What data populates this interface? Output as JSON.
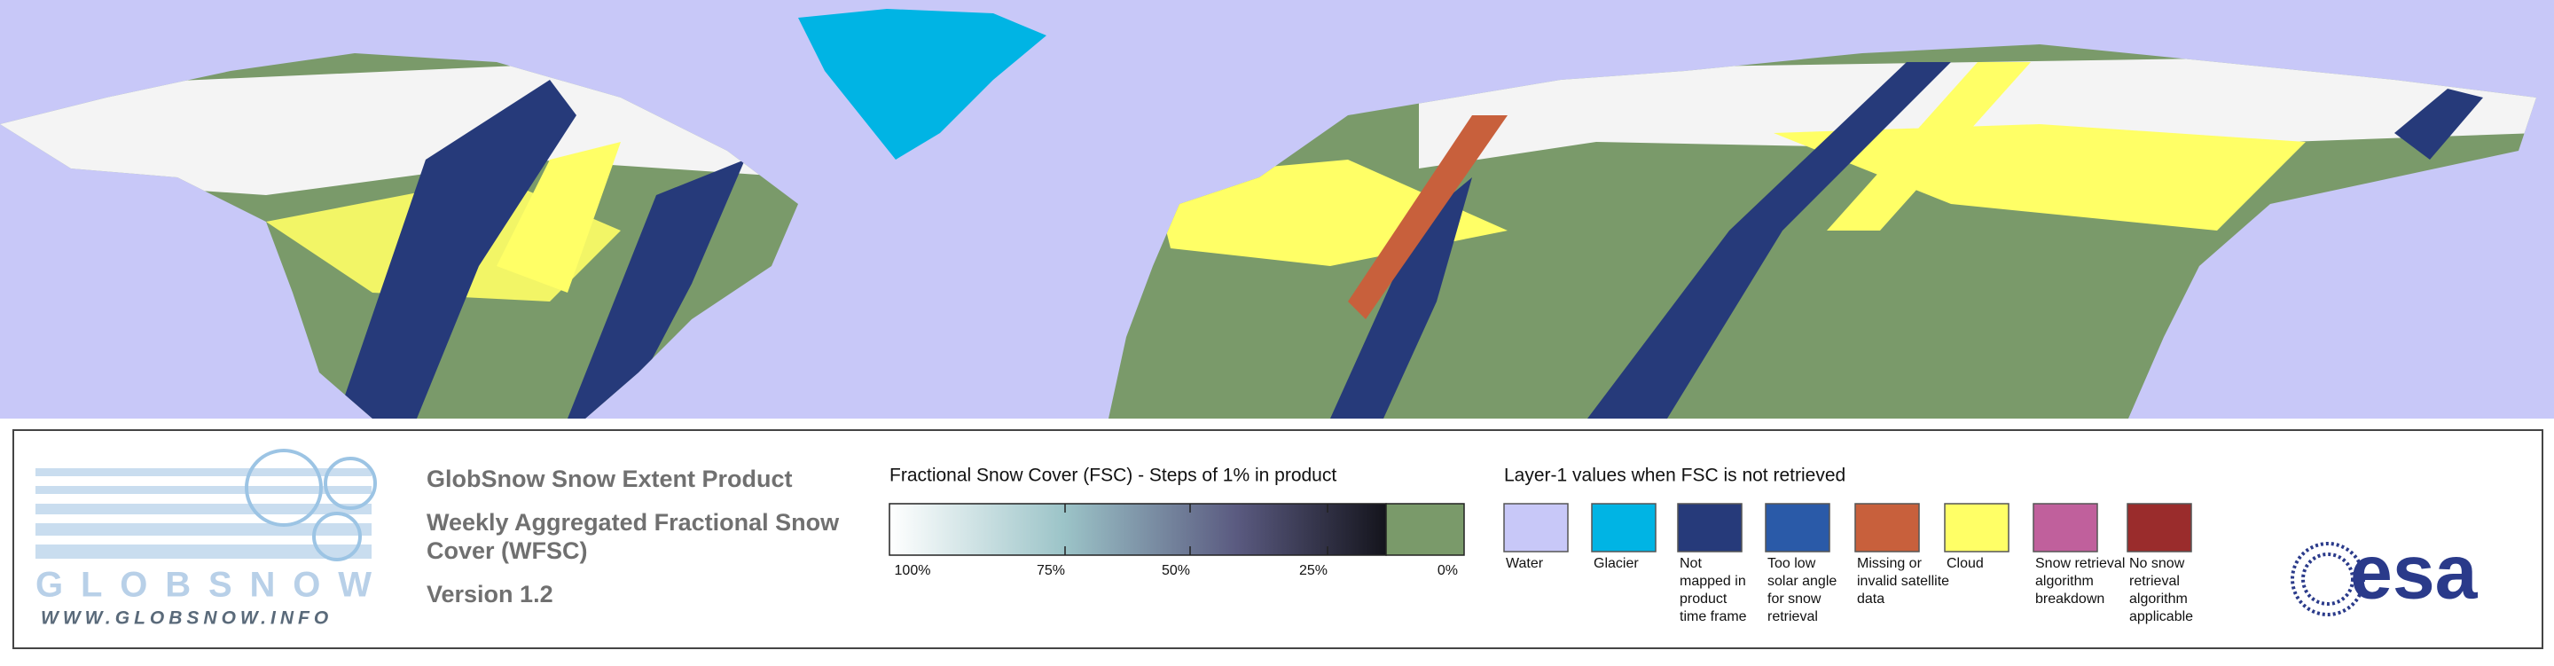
{
  "logo": {
    "wordmark": "GLOBSNOW",
    "url": "WWW.GLOBSNOW.INFO"
  },
  "product": {
    "title": "GlobSnow Snow Extent Product",
    "subtitle_lines": [
      "Weekly Aggregated Fractional Snow",
      "Cover (WFSC)"
    ],
    "version": "Version 1.2"
  },
  "fsc_legend": {
    "title": "Fractional Snow Cover (FSC) - Steps of 1% in product",
    "tick_labels": [
      "100%",
      "75%",
      "50%",
      "25%",
      "0%"
    ]
  },
  "layer1_legend": {
    "title": "Layer-1 values when FSC is not retrieved",
    "items": [
      {
        "lines": [
          "Water"
        ],
        "color": "#c8c8f8"
      },
      {
        "lines": [
          "Glacier"
        ],
        "color": "#00b4e4"
      },
      {
        "lines": [
          "Not",
          "mapped in",
          "product",
          "time frame"
        ],
        "color": "#263a7a"
      },
      {
        "lines": [
          "Too low",
          "solar angle",
          "for snow",
          "retrieval"
        ],
        "color": "#2a5aa8"
      },
      {
        "lines": [
          "Missing or",
          "invalid satellite",
          "data"
        ],
        "color": "#c8603c"
      },
      {
        "lines": [
          "Cloud"
        ],
        "color": "#ffff66"
      },
      {
        "lines": [
          "Snow retrieval",
          "algorithm",
          "breakdown"
        ],
        "color": "#c0609c"
      },
      {
        "lines": [
          "No snow",
          "retrieval",
          "algorithm",
          "applicable"
        ],
        "color": "#9a2c2c"
      }
    ]
  },
  "esa_logo": "esa"
}
